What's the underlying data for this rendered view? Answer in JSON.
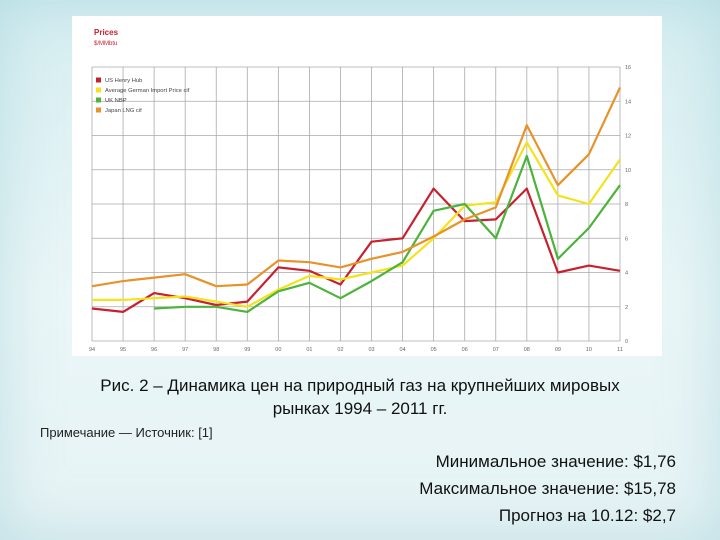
{
  "chart_data": {
    "type": "line",
    "title": "Prices",
    "subtitle": "$/MMbtu",
    "x": [
      "94",
      "95",
      "96",
      "97",
      "98",
      "99",
      "00",
      "01",
      "02",
      "03",
      "04",
      "05",
      "06",
      "07",
      "08",
      "09",
      "10",
      "11"
    ],
    "ylim": [
      0,
      16
    ],
    "yticks": [
      0,
      2,
      4,
      6,
      8,
      10,
      12,
      14,
      16
    ],
    "grid": true,
    "legend_position": "top-left",
    "series": [
      {
        "name": "US Henry Hub",
        "color": "#c8202e",
        "values": [
          1.9,
          1.7,
          2.8,
          2.5,
          2.1,
          2.3,
          4.3,
          4.1,
          3.3,
          5.8,
          6.0,
          8.9,
          7.0,
          7.1,
          8.9,
          4.0,
          4.4,
          4.1
        ]
      },
      {
        "name": "Average German Import Price cif",
        "color": "#f4e21c",
        "values": [
          2.4,
          2.4,
          2.5,
          2.6,
          2.3,
          2.0,
          3.0,
          3.8,
          3.6,
          4.0,
          4.4,
          6.0,
          7.9,
          8.1,
          11.6,
          8.5,
          8.0,
          10.6
        ]
      },
      {
        "name": "UK NBP",
        "color": "#4db33b",
        "values": [
          null,
          null,
          1.9,
          2.0,
          2.0,
          1.7,
          2.9,
          3.4,
          2.5,
          3.5,
          4.6,
          7.6,
          8.0,
          6.0,
          10.8,
          4.8,
          6.6,
          9.1
        ]
      },
      {
        "name": "Japan LNG cif",
        "color": "#e8922a",
        "values": [
          3.2,
          3.5,
          3.7,
          3.9,
          3.2,
          3.3,
          4.7,
          4.6,
          4.3,
          4.8,
          5.2,
          6.1,
          7.1,
          7.8,
          12.6,
          9.1,
          10.9,
          14.8
        ]
      }
    ]
  },
  "caption": {
    "line1": "Рис. 2 – Динамика цен на природный газ на крупнейших мировых",
    "line2": "рынках 1994 – 2011 гг."
  },
  "note": "Примечание — Источник: [1]",
  "stats": {
    "min": "Минимальное значение: $1,76",
    "max": "Максимальное значение: $15,78",
    "forecast": "Прогноз на 10.12: $2,7"
  }
}
